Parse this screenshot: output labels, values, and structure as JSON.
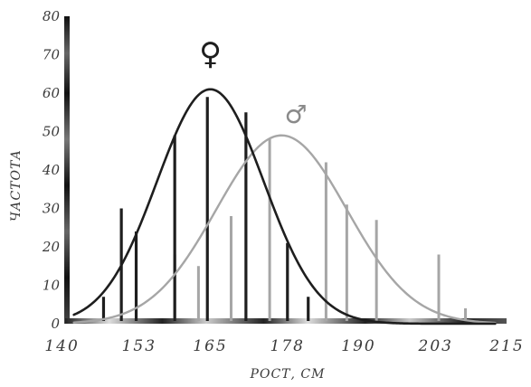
{
  "chart_data": {
    "type": "bar+line",
    "title": "",
    "xlabel": "РОСТ, СМ",
    "ylabel": "ЧАСТОТА",
    "xlim": [
      139,
      216
    ],
    "ylim": [
      0,
      80
    ],
    "x_ticks": [
      {
        "value": 140,
        "label": "140"
      },
      {
        "value": 153,
        "label": "153"
      },
      {
        "value": 165,
        "label": "165"
      },
      {
        "value": 178,
        "label": "178"
      },
      {
        "value": 190,
        "label": "190"
      },
      {
        "value": 203,
        "label": "203"
      },
      {
        "value": 215,
        "label": "215"
      }
    ],
    "y_ticks": [
      {
        "value": 0,
        "label": "0"
      },
      {
        "value": 10,
        "label": "10"
      },
      {
        "value": 20,
        "label": "20"
      },
      {
        "value": 30,
        "label": "30"
      },
      {
        "value": 40,
        "label": "40"
      },
      {
        "value": 50,
        "label": "50"
      },
      {
        "value": 60,
        "label": "60"
      },
      {
        "value": 70,
        "label": "70"
      },
      {
        "value": 80,
        "label": "80"
      }
    ],
    "series": [
      {
        "symbol": "♀",
        "color": "#1e1e1e",
        "bars": [
          {
            "x": 147,
            "y": 7
          },
          {
            "x": 150,
            "y": 30
          },
          {
            "x": 152.5,
            "y": 24
          },
          {
            "x": 159,
            "y": 49
          },
          {
            "x": 164.5,
            "y": 59
          },
          {
            "x": 171,
            "y": 55
          },
          {
            "x": 178,
            "y": 21
          },
          {
            "x": 181.5,
            "y": 7
          }
        ],
        "curve": {
          "mean": 165,
          "sd": 9,
          "peak": 61
        }
      },
      {
        "symbol": "♂",
        "color": "#a6a6a6",
        "bars": [
          {
            "x": 159,
            "y": 18
          },
          {
            "x": 163,
            "y": 15
          },
          {
            "x": 168.5,
            "y": 28
          },
          {
            "x": 175,
            "y": 48
          },
          {
            "x": 184.5,
            "y": 42
          },
          {
            "x": 188,
            "y": 31
          },
          {
            "x": 193,
            "y": 27
          },
          {
            "x": 203.5,
            "y": 18
          },
          {
            "x": 208,
            "y": 4
          }
        ],
        "curve": {
          "mean": 177,
          "sd": 11,
          "peak": 49
        }
      }
    ]
  }
}
